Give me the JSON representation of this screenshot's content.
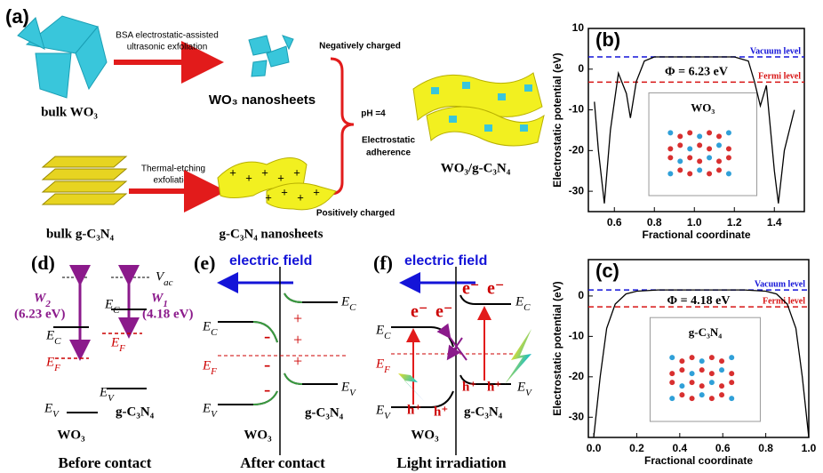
{
  "panel_a": {
    "label": "(a)",
    "bulk_wo3": "bulk WO₃",
    "step1": [
      "BSA electrostatic-assisted",
      "ultrasonic exfoliation"
    ],
    "wo3_nanosheets": "WO₃ nanosheets",
    "negative": "Negatively charged",
    "ph": "pH =4",
    "adherence": [
      "Electrostatic",
      "adherence"
    ],
    "composite": "WO₃/g-C₃N₄",
    "step2": [
      "Thermal-etching",
      "exfoliation"
    ],
    "bulk_gcn": "bulk g-C₃N₄",
    "gcn_nanosheets": "g-C₃N₄ nanosheets",
    "positive": "Positively charged",
    "plus": [
      "+",
      "+",
      "+",
      "+",
      "+",
      "+",
      "+",
      "+",
      "+"
    ]
  },
  "panel_b": {
    "label": "(b)",
    "type": "line",
    "y_label": "Electrostatic potential (eV)",
    "x_label": "Fractional coordinate",
    "x": [
      0.5,
      0.52,
      0.55,
      0.58,
      0.62,
      0.66,
      0.68,
      0.71,
      0.75,
      0.8,
      1.0,
      1.2,
      1.27,
      1.3,
      1.33,
      1.36,
      1.4,
      1.42,
      1.45,
      1.5
    ],
    "values": [
      -8,
      -20,
      -33,
      -15,
      -1,
      -6,
      -12,
      -3,
      2,
      3,
      3,
      3,
      2,
      -3,
      -9,
      -4,
      -25,
      -33,
      -20,
      -10
    ],
    "xlim": [
      0.47,
      1.55
    ],
    "ylim": [
      -35,
      10
    ],
    "xticks": [
      0.6,
      0.8,
      {
        "value": 1,
        "label": "1.0"
      },
      1.2,
      1.4
    ],
    "yticks": [
      -30,
      -20,
      -10,
      0,
      10
    ],
    "vacuum_level": 3,
    "fermi_level": -3.2,
    "vacuum_label": "Vacuum level",
    "fermi_label": "Fermi level",
    "work_function": "Φ = 6.23 eV",
    "inset_label": "WO₃"
  },
  "panel_c": {
    "label": "(c)",
    "type": "line",
    "y_label": "Electrostatic potential (eV)",
    "x_label": "Fractional coordinate",
    "x": [
      0,
      0.03,
      0.06,
      0.1,
      0.15,
      0.2,
      0.3,
      0.5,
      0.7,
      0.8,
      0.85,
      0.9,
      0.94,
      0.97,
      1.0
    ],
    "values": [
      -35,
      -20,
      -8,
      -2,
      0.5,
      1.2,
      1.5,
      1.5,
      1.5,
      1.2,
      0.5,
      -2,
      -8,
      -20,
      -35
    ],
    "xlim": [
      -0.025,
      1.0
    ],
    "ylim": [
      -35,
      9
    ],
    "xticks": [
      {
        "value": 0,
        "label": "0.0"
      },
      0.2,
      0.4,
      0.6,
      0.8,
      {
        "value": 1,
        "label": "1.0"
      }
    ],
    "yticks": [
      -30,
      -20,
      -10,
      0
    ],
    "vacuum_level": 1.5,
    "fermi_level": -2.7,
    "vacuum_label": "Vacuum level",
    "fermi_label": "Fermi level",
    "work_function": "Φ = 4.18 eV",
    "inset_label": "g-C₃N₄"
  },
  "panel_d": {
    "label": "(d)",
    "vac": "Vac",
    "w2": "W2",
    "w2_value": "(6.23 eV)",
    "w1": "W1",
    "w1_value": "(4.18 eV)",
    "ec_wo3": "EC",
    "ef_wo3": "EF",
    "ev_wo3": "EV",
    "ec_gcn": "EC",
    "ef_gcn": "EF",
    "ev_gcn": "EV",
    "wo3": "WO₃",
    "gcn": "g-C₃N₄",
    "caption": "Before contact"
  },
  "panel_e": {
    "label": "(e)",
    "field": "electric field",
    "ec_wo3": "EC",
    "ef": "EF",
    "ev_wo3": "EV",
    "ec_gcn": "EC",
    "ev_gcn": "EV",
    "plus": [
      "+",
      "+",
      "+"
    ],
    "minus": [
      "-",
      "-",
      "-"
    ],
    "wo3": "WO₃",
    "gcn": "g-C₃N₄",
    "caption": "After contact"
  },
  "panel_f": {
    "label": "(f)",
    "field": "electric field",
    "ec_wo3": "EC",
    "ef": "EF",
    "ev_wo3": "EV",
    "ec_gcn": "EC",
    "ev_gcn": "EV",
    "electrons": [
      "e⁻",
      "e⁻",
      "e⁻",
      "e⁻"
    ],
    "holes": [
      "h⁺",
      "h⁺",
      "h⁺",
      "h⁺"
    ],
    "wo3": "WO₃",
    "gcn": "g-C₃N₄",
    "caption": "Light irradiation"
  }
}
